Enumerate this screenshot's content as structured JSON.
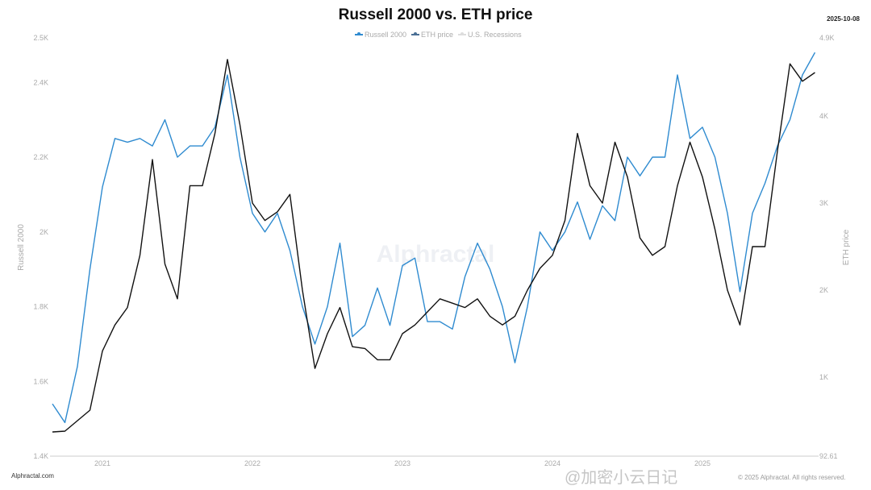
{
  "header": {
    "title": "Russell 2000 vs. ETH price",
    "date": "2025-10-08"
  },
  "legend": [
    {
      "label": "Russell 2000",
      "color": "#2f8bd0"
    },
    {
      "label": "ETH price",
      "color": "#4a6f95"
    },
    {
      "label": "U.S. Recessions",
      "color": "#dddddd"
    }
  ],
  "footer": {
    "source": "Alphractal.com",
    "copyright": "© 2025 Alphractal. All rights reserved.",
    "watermark_center": "Alphractal",
    "watermark_corner": "@加密小云日记"
  },
  "chart_data": {
    "type": "line",
    "title": "Russell 2000 vs. ETH price",
    "xlabel": "",
    "x_ticks": [
      "2021",
      "2022",
      "2023",
      "2024",
      "2025"
    ],
    "y_left": {
      "label": "Russell 2000",
      "ticks": [
        "1.4K",
        "1.6K",
        "1.8K",
        "2K",
        "2.2K",
        "2.4K",
        "2.5K"
      ],
      "range": [
        1400,
        2520
      ]
    },
    "y_right": {
      "label": "ETH price",
      "ticks": [
        "92.61",
        "1K",
        "2K",
        "3K",
        "4K",
        "4.9K"
      ],
      "range": [
        92.61,
        4900
      ]
    },
    "grid": false,
    "legend_position": "top",
    "x": [
      "2020-09",
      "2020-10",
      "2020-11",
      "2020-12",
      "2021-01",
      "2021-02",
      "2021-03",
      "2021-04",
      "2021-05",
      "2021-06",
      "2021-07",
      "2021-08",
      "2021-09",
      "2021-10",
      "2021-11",
      "2021-12",
      "2022-01",
      "2022-02",
      "2022-03",
      "2022-04",
      "2022-05",
      "2022-06",
      "2022-07",
      "2022-08",
      "2022-09",
      "2022-10",
      "2022-11",
      "2022-12",
      "2023-01",
      "2023-02",
      "2023-03",
      "2023-04",
      "2023-05",
      "2023-06",
      "2023-07",
      "2023-08",
      "2023-09",
      "2023-10",
      "2023-11",
      "2023-12",
      "2024-01",
      "2024-02",
      "2024-03",
      "2024-04",
      "2024-05",
      "2024-06",
      "2024-07",
      "2024-08",
      "2024-09",
      "2024-10",
      "2024-11",
      "2024-12",
      "2025-01",
      "2025-02",
      "2025-03",
      "2025-04",
      "2025-05",
      "2025-06",
      "2025-07",
      "2025-08",
      "2025-09",
      "2025-10"
    ],
    "series": [
      {
        "name": "Russell 2000",
        "axis": "left",
        "color": "#2f8bd0",
        "values": [
          1540,
          1490,
          1640,
          1900,
          2120,
          2250,
          2240,
          2250,
          2230,
          2300,
          2200,
          2230,
          2230,
          2280,
          2420,
          2200,
          2050,
          2000,
          2050,
          1950,
          1800,
          1700,
          1800,
          1970,
          1720,
          1750,
          1850,
          1750,
          1910,
          1930,
          1760,
          1760,
          1740,
          1880,
          1970,
          1900,
          1800,
          1650,
          1800,
          2000,
          1950,
          2000,
          2080,
          1980,
          2070,
          2030,
          2200,
          2150,
          2200,
          2200,
          2420,
          2250,
          2280,
          2200,
          2050,
          1840,
          2050,
          2130,
          2230,
          2300,
          2420,
          2480
        ]
      },
      {
        "name": "ETH price",
        "axis": "right",
        "color": "#111111",
        "values": [
          370,
          380,
          500,
          620,
          1300,
          1600,
          1800,
          2400,
          3500,
          2300,
          1900,
          3200,
          3200,
          3800,
          4650,
          3900,
          3000,
          2800,
          2900,
          3100,
          2000,
          1100,
          1500,
          1800,
          1350,
          1330,
          1200,
          1200,
          1500,
          1600,
          1750,
          1900,
          1850,
          1800,
          1900,
          1700,
          1600,
          1700,
          2000,
          2250,
          2400,
          2800,
          3800,
          3200,
          3000,
          3700,
          3300,
          2600,
          2400,
          2500,
          3200,
          3700,
          3300,
          2700,
          2000,
          1600,
          2500,
          2500,
          3600,
          4600,
          4400,
          4500
        ]
      }
    ]
  }
}
